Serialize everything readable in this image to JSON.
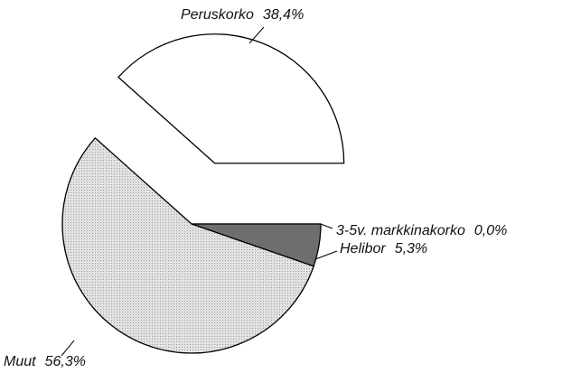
{
  "chart_data": {
    "type": "pie",
    "categories": [
      "3-5v. markkinakorko",
      "Helibor",
      "Muut",
      "Peruskorko"
    ],
    "values": [
      0.0,
      5.3,
      56.3,
      38.4
    ],
    "value_labels": [
      "0,0%",
      "5,3%",
      "56,3%",
      "38,4%"
    ],
    "colors": [
      "#3a3a3a",
      "#6e6e6e",
      "#d9d9d9",
      "#ffffff"
    ],
    "exploded": [
      "Peruskorko"
    ]
  }
}
